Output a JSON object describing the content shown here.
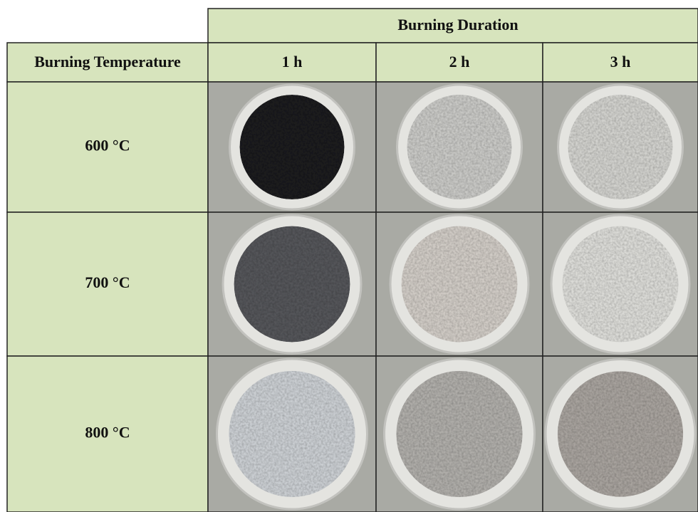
{
  "table": {
    "title": "Burning Duration",
    "corner_header": "Burning Temperature",
    "columns": [
      "1 h",
      "2 h",
      "3 h"
    ],
    "rows": [
      "600 °C",
      "700 °C",
      "800 °C"
    ]
  }
}
